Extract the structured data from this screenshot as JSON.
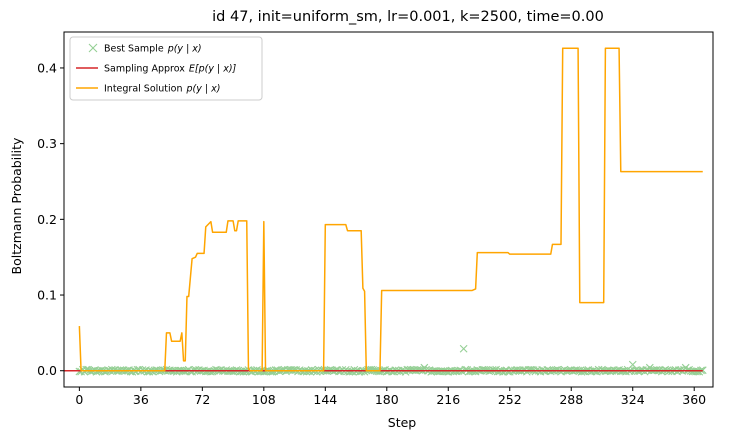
{
  "chart_data": {
    "type": "line",
    "title": "id 47, init=uniform_sm, lr=0.001, k=2500, time=0.00",
    "xlabel": "Step",
    "ylabel": "Boltzmann Probability",
    "xlim": [
      -9,
      371
    ],
    "ylim": [
      -0.0215,
      0.4475
    ],
    "xticks": [
      0,
      36,
      72,
      108,
      144,
      180,
      216,
      252,
      288,
      324,
      360
    ],
    "yticks": [
      0.0,
      0.1,
      0.2,
      0.3,
      0.4
    ],
    "ytick_labels": [
      "0.0",
      "0.1",
      "0.2",
      "0.3",
      "0.4"
    ],
    "legend_position": "upper-left",
    "series": [
      {
        "name": "Best Sample p(y | x)",
        "legend_label": "Best Sample",
        "legend_math": "p(y | x)",
        "kind": "scatter",
        "marker": "x",
        "color": "#2ca02c",
        "alpha": 0.5,
        "noise_scale": 0.0015,
        "outliers": [
          {
            "x": 202,
            "y": 0.004
          },
          {
            "x": 225,
            "y": 0.029
          },
          {
            "x": 324,
            "y": 0.008
          },
          {
            "x": 334,
            "y": 0.004
          },
          {
            "x": 355,
            "y": 0.004
          }
        ]
      },
      {
        "name": "Sampling Approx E[p(y | x)]",
        "legend_label": "Sampling Approx",
        "legend_math": "E[p(y | x)]",
        "kind": "line",
        "color": "#d62728",
        "points": [
          [
            -9,
            0.0
          ],
          [
            365,
            0.0
          ]
        ]
      },
      {
        "name": "Integral Solution p(y | x)",
        "legend_label": "Integral Solution",
        "legend_math": "p(y | x)",
        "kind": "line",
        "color": "#ffa500",
        "points": [
          [
            0,
            0.059
          ],
          [
            1,
            0.0
          ],
          [
            50,
            0.0
          ],
          [
            51,
            0.05
          ],
          [
            53,
            0.05
          ],
          [
            54,
            0.039
          ],
          [
            59,
            0.039
          ],
          [
            60,
            0.05
          ],
          [
            61,
            0.013
          ],
          [
            62,
            0.013
          ],
          [
            63,
            0.098
          ],
          [
            64,
            0.098
          ],
          [
            65,
            0.123
          ],
          [
            66,
            0.148
          ],
          [
            68,
            0.15
          ],
          [
            69,
            0.155
          ],
          [
            73,
            0.155
          ],
          [
            74,
            0.19
          ],
          [
            77,
            0.197
          ],
          [
            78,
            0.183
          ],
          [
            86,
            0.183
          ],
          [
            87,
            0.198
          ],
          [
            90,
            0.198
          ],
          [
            91,
            0.185
          ],
          [
            92,
            0.185
          ],
          [
            93,
            0.198
          ],
          [
            98,
            0.198
          ],
          [
            99,
            0.003
          ],
          [
            100,
            0.0
          ],
          [
            107,
            0.0
          ],
          [
            108,
            0.197
          ],
          [
            109,
            0.0
          ],
          [
            143,
            0.0
          ],
          [
            144,
            0.193
          ],
          [
            156,
            0.193
          ],
          [
            157,
            0.185
          ],
          [
            165,
            0.185
          ],
          [
            166,
            0.109
          ],
          [
            167,
            0.105
          ],
          [
            168,
            0.0
          ],
          [
            176,
            0.0
          ],
          [
            177,
            0.106
          ],
          [
            230,
            0.106
          ],
          [
            232,
            0.108
          ],
          [
            233,
            0.156
          ],
          [
            251,
            0.156
          ],
          [
            252,
            0.154
          ],
          [
            276,
            0.154
          ],
          [
            277,
            0.167
          ],
          [
            282,
            0.167
          ],
          [
            283,
            0.426
          ],
          [
            292,
            0.426
          ],
          [
            293,
            0.09
          ],
          [
            307,
            0.09
          ],
          [
            308,
            0.426
          ],
          [
            316,
            0.426
          ],
          [
            317,
            0.263
          ],
          [
            365,
            0.263
          ]
        ]
      }
    ]
  }
}
